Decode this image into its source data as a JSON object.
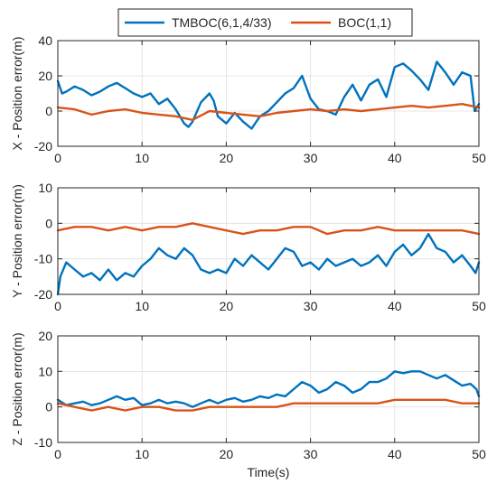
{
  "colors": {
    "tmboc": "#0072BD",
    "boc": "#D95319"
  },
  "legend": {
    "items": [
      {
        "label": "TMBOC(6,1,4/33)",
        "color": "#0072BD"
      },
      {
        "label": "BOC(1,1)",
        "color": "#D95319"
      }
    ]
  },
  "chart_data": [
    {
      "type": "line",
      "ylabel": "X - Position error(m)",
      "xlim": [
        0,
        50
      ],
      "ylim": [
        -20,
        40
      ],
      "xticks": [
        0,
        10,
        20,
        30,
        40,
        50
      ],
      "yticks": [
        -20,
        0,
        20,
        40
      ],
      "grid": true,
      "series": [
        {
          "name": "TMBOC(6,1,4/33)",
          "color": "#0072BD",
          "x": [
            0,
            0.5,
            1,
            2,
            3,
            4,
            5,
            6,
            7,
            8,
            9,
            10,
            11,
            12,
            13,
            14,
            15,
            15.5,
            16,
            17,
            18,
            18.5,
            19,
            20,
            21,
            22,
            23,
            24,
            25,
            26,
            27,
            28,
            29,
            30,
            31,
            32,
            33,
            34,
            35,
            36,
            37,
            38,
            39,
            40,
            41,
            42,
            43,
            44,
            45,
            46,
            47,
            48,
            49,
            49.5,
            50
          ],
          "y": [
            17,
            10,
            11,
            14,
            12,
            9,
            11,
            14,
            16,
            13,
            10,
            8,
            10,
            4,
            7,
            1,
            -7,
            -9,
            -6,
            5,
            10,
            6,
            -3,
            -7,
            -1,
            -6,
            -10,
            -3,
            0,
            5,
            10,
            13,
            20,
            7,
            1,
            0,
            -2,
            8,
            15,
            6,
            15,
            18,
            8,
            25,
            27,
            23,
            18,
            12,
            28,
            22,
            15,
            22,
            20,
            0,
            4
          ]
        },
        {
          "name": "BOC(1,1)",
          "color": "#D95319",
          "x": [
            0,
            2,
            4,
            6,
            8,
            10,
            12,
            14,
            16,
            18,
            20,
            22,
            24,
            26,
            28,
            30,
            32,
            34,
            36,
            38,
            40,
            42,
            44,
            46,
            48,
            50
          ],
          "y": [
            2,
            1,
            -2,
            0,
            1,
            -1,
            -2,
            -3,
            -5,
            0,
            -1,
            -2,
            -3,
            -1,
            0,
            1,
            0,
            1,
            0,
            1,
            2,
            3,
            2,
            3,
            4,
            2
          ]
        }
      ]
    },
    {
      "type": "line",
      "ylabel": "Y - Position error(m)",
      "xlim": [
        0,
        50
      ],
      "ylim": [
        -20,
        10
      ],
      "xticks": [
        0,
        10,
        20,
        30,
        40,
        50
      ],
      "yticks": [
        -20,
        -10,
        0,
        10
      ],
      "grid": true,
      "series": [
        {
          "name": "TMBOC(6,1,4/33)",
          "color": "#0072BD",
          "x": [
            0,
            0.3,
            1,
            2,
            3,
            4,
            5,
            6,
            7,
            8,
            9,
            10,
            11,
            12,
            13,
            14,
            15,
            16,
            17,
            18,
            19,
            20,
            21,
            22,
            23,
            24,
            25,
            26,
            27,
            28,
            29,
            30,
            31,
            32,
            33,
            34,
            35,
            36,
            37,
            38,
            39,
            40,
            41,
            42,
            43,
            44,
            45,
            46,
            47,
            48,
            49,
            49.6,
            50
          ],
          "y": [
            -20,
            -15,
            -11,
            -13,
            -15,
            -14,
            -16,
            -13,
            -16,
            -14,
            -15,
            -12,
            -10,
            -7,
            -9,
            -10,
            -7,
            -9,
            -13,
            -14,
            -13,
            -14,
            -10,
            -12,
            -9,
            -11,
            -13,
            -10,
            -7,
            -8,
            -12,
            -11,
            -13,
            -10,
            -12,
            -11,
            -10,
            -12,
            -11,
            -9,
            -12,
            -8,
            -6,
            -9,
            -7,
            -3,
            -7,
            -8,
            -11,
            -9,
            -12,
            -14,
            -11
          ]
        },
        {
          "name": "BOC(1,1)",
          "color": "#D95319",
          "x": [
            0,
            2,
            4,
            6,
            8,
            10,
            12,
            14,
            16,
            18,
            20,
            22,
            24,
            26,
            28,
            30,
            32,
            34,
            36,
            38,
            40,
            42,
            44,
            46,
            48,
            50
          ],
          "y": [
            -2,
            -1,
            -1,
            -2,
            -1,
            -2,
            -1,
            -1,
            0,
            -1,
            -2,
            -3,
            -2,
            -2,
            -1,
            -1,
            -3,
            -2,
            -2,
            -1,
            -2,
            -2,
            -2,
            -2,
            -2,
            -3
          ]
        }
      ]
    },
    {
      "type": "line",
      "ylabel": "Z - Position error(m)",
      "xlabel": "Time(s)",
      "xlim": [
        0,
        50
      ],
      "ylim": [
        -10,
        20
      ],
      "xticks": [
        0,
        10,
        20,
        30,
        40,
        50
      ],
      "yticks": [
        -10,
        0,
        10,
        20
      ],
      "grid": true,
      "series": [
        {
          "name": "TMBOC(6,1,4/33)",
          "color": "#0072BD",
          "x": [
            0,
            1,
            2,
            3,
            4,
            5,
            6,
            7,
            8,
            9,
            10,
            11,
            12,
            13,
            14,
            15,
            16,
            17,
            18,
            19,
            20,
            21,
            22,
            23,
            24,
            25,
            26,
            27,
            28,
            29,
            30,
            31,
            32,
            33,
            34,
            35,
            36,
            37,
            38,
            39,
            40,
            41,
            42,
            43,
            44,
            45,
            46,
            47,
            48,
            49,
            49.7,
            50
          ],
          "y": [
            2,
            0.5,
            1,
            1.5,
            0.5,
            1,
            2,
            3,
            2,
            2.5,
            0.5,
            1,
            2,
            1,
            1.5,
            1,
            0,
            1,
            2,
            1,
            2,
            2.5,
            1.5,
            2,
            3,
            2.5,
            3.5,
            3,
            5,
            7,
            6,
            4,
            5,
            7,
            6,
            4,
            5,
            7,
            7,
            8,
            10,
            9.5,
            10,
            10,
            9,
            8,
            9,
            7.5,
            6,
            6.5,
            5,
            3
          ]
        },
        {
          "name": "BOC(1,1)",
          "color": "#D95319",
          "x": [
            0,
            2,
            4,
            6,
            8,
            10,
            12,
            14,
            16,
            18,
            20,
            22,
            24,
            26,
            28,
            30,
            32,
            34,
            36,
            38,
            40,
            42,
            44,
            46,
            48,
            50
          ],
          "y": [
            1,
            0,
            -1,
            0,
            -1,
            0,
            0,
            -1,
            -1,
            0,
            0,
            0,
            0,
            0,
            1,
            1,
            1,
            1,
            1,
            1,
            2,
            2,
            2,
            2,
            1,
            1
          ]
        }
      ]
    }
  ]
}
